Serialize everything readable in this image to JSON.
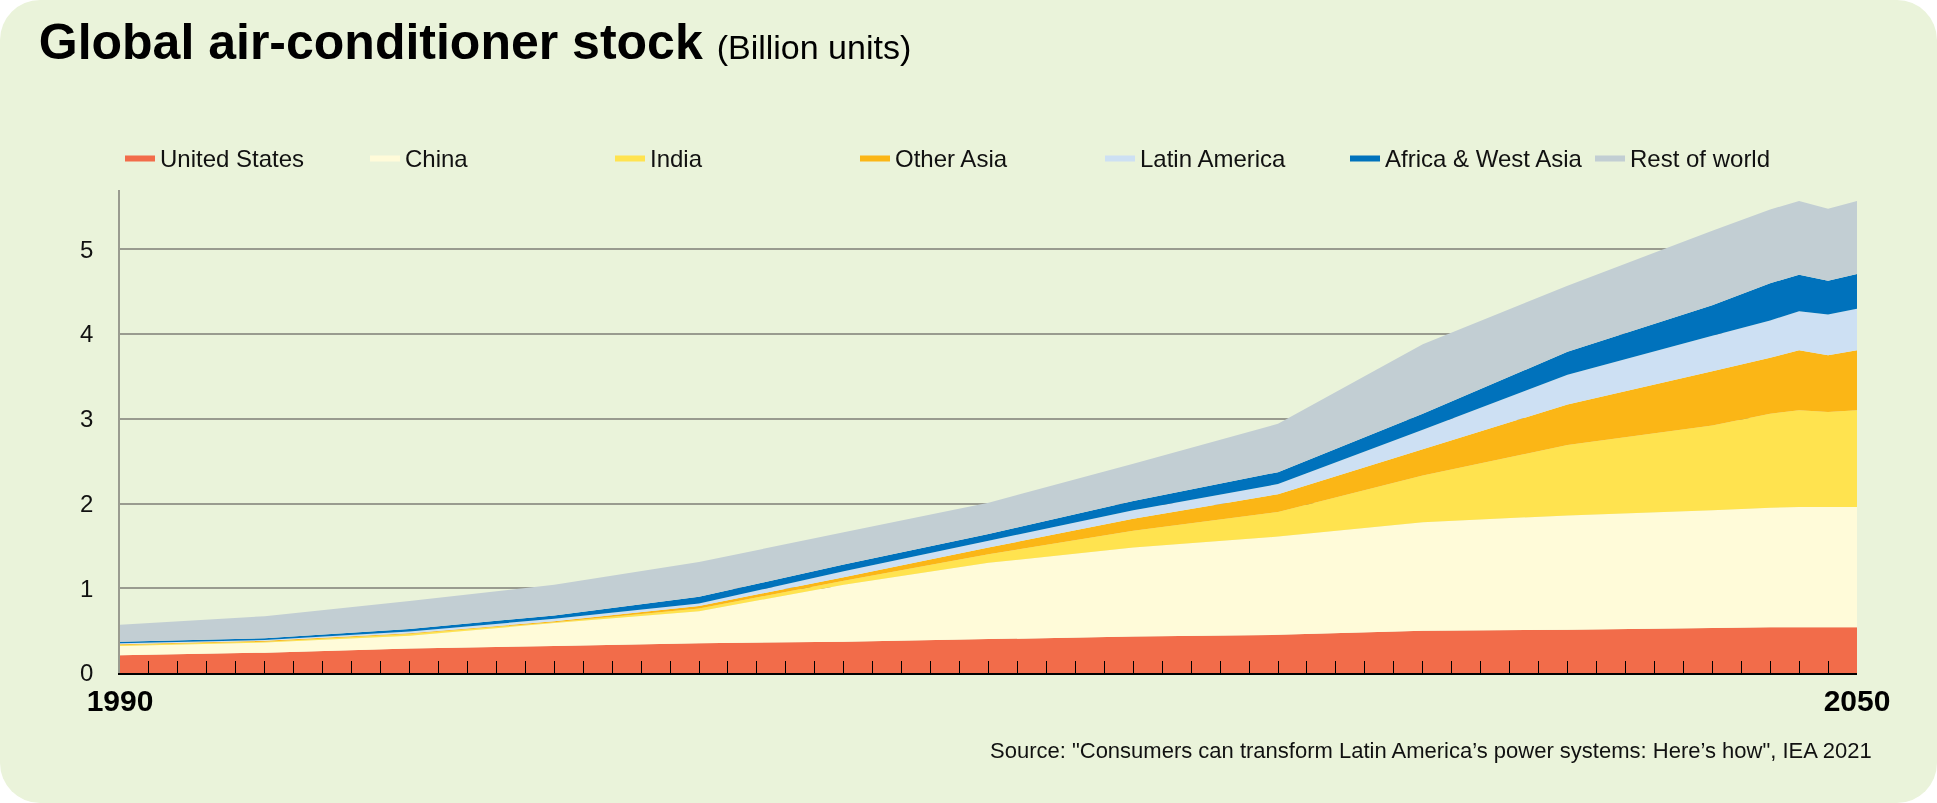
{
  "chart_data": {
    "type": "area",
    "stacked": true,
    "title": "Global air-conditioner stock",
    "subtitle": "(Billion units)",
    "x": [
      1990,
      1995,
      2000,
      2005,
      2010,
      2015,
      2020,
      2025,
      2030,
      2035,
      2040,
      2045,
      2047,
      2048,
      2049,
      2050
    ],
    "series": [
      {
        "name": "United States",
        "color": "#f26c4a",
        "values": [
          0.21,
          0.24,
          0.29,
          0.32,
          0.35,
          0.37,
          0.4,
          0.43,
          0.45,
          0.5,
          0.51,
          0.53,
          0.54,
          0.54,
          0.54,
          0.54
        ]
      },
      {
        "name": "China",
        "color": "#fffbd9",
        "values": [
          0.11,
          0.12,
          0.15,
          0.27,
          0.38,
          0.67,
          0.9,
          1.05,
          1.16,
          1.28,
          1.35,
          1.39,
          1.41,
          1.42,
          1.42,
          1.42
        ]
      },
      {
        "name": "India",
        "color": "#ffe34f",
        "values": [
          0.01,
          0.01,
          0.02,
          0.01,
          0.03,
          0.05,
          0.1,
          0.2,
          0.29,
          0.55,
          0.83,
          1.0,
          1.11,
          1.14,
          1.12,
          1.14
        ]
      },
      {
        "name": "Other Asia",
        "color": "#fbb616",
        "values": [
          0.01,
          0.01,
          0.01,
          0.01,
          0.03,
          0.04,
          0.08,
          0.14,
          0.21,
          0.31,
          0.48,
          0.64,
          0.66,
          0.71,
          0.67,
          0.71
        ]
      },
      {
        "name": "Latin America",
        "color": "#cde0f3",
        "values": [
          0.01,
          0.01,
          0.02,
          0.03,
          0.03,
          0.07,
          0.08,
          0.1,
          0.12,
          0.23,
          0.35,
          0.42,
          0.44,
          0.46,
          0.48,
          0.49
        ]
      },
      {
        "name": "Africa & West Asia",
        "color": "#0072bc",
        "values": [
          0.02,
          0.02,
          0.03,
          0.04,
          0.08,
          0.08,
          0.08,
          0.11,
          0.14,
          0.19,
          0.27,
          0.36,
          0.44,
          0.43,
          0.4,
          0.41
        ]
      },
      {
        "name": "Rest of world",
        "color": "#c2ced3",
        "values": [
          0.2,
          0.26,
          0.33,
          0.36,
          0.41,
          0.38,
          0.37,
          0.44,
          0.57,
          0.82,
          0.78,
          0.88,
          0.87,
          0.87,
          0.85,
          0.86
        ]
      }
    ],
    "xlim": [
      1990,
      2050
    ],
    "xticks": [
      1990,
      {
        "value": 1991,
        "label": null
      },
      {
        "value": 1992,
        "label": null
      },
      {
        "value": 1993,
        "label": null
      },
      {
        "value": 1994,
        "label": null
      },
      {
        "value": 1995,
        "label": null
      },
      {
        "value": 1996,
        "label": null
      },
      {
        "value": 1997,
        "label": null
      },
      {
        "value": 1998,
        "label": null
      },
      {
        "value": 1999,
        "label": null
      },
      {
        "value": 2000,
        "label": null
      },
      {
        "value": 2001,
        "label": null
      },
      {
        "value": 2002,
        "label": null
      },
      {
        "value": 2003,
        "label": null
      },
      {
        "value": 2004,
        "label": null
      },
      {
        "value": 2005,
        "label": null
      },
      {
        "value": 2006,
        "label": null
      },
      {
        "value": 2007,
        "label": null
      },
      {
        "value": 2008,
        "label": null
      },
      {
        "value": 2009,
        "label": null
      },
      {
        "value": 2010,
        "label": null
      },
      {
        "value": 2011,
        "label": null
      },
      {
        "value": 2012,
        "label": null
      },
      {
        "value": 2013,
        "label": null
      },
      {
        "value": 2014,
        "label": null
      },
      {
        "value": 2015,
        "label": null
      },
      {
        "value": 2016,
        "label": null
      },
      {
        "value": 2017,
        "label": null
      },
      {
        "value": 2018,
        "label": null
      },
      {
        "value": 2019,
        "label": null
      },
      {
        "value": 2020,
        "label": null
      },
      {
        "value": 2021,
        "label": null
      },
      {
        "value": 2022,
        "label": null
      },
      {
        "value": 2023,
        "label": null
      },
      {
        "value": 2024,
        "label": null
      },
      {
        "value": 2025,
        "label": null
      },
      {
        "value": 2026,
        "label": null
      },
      {
        "value": 2027,
        "label": null
      },
      {
        "value": 2028,
        "label": null
      },
      {
        "value": 2029,
        "label": null
      },
      {
        "value": 2030,
        "label": null
      },
      {
        "value": 2031,
        "label": null
      },
      {
        "value": 2032,
        "label": null
      },
      {
        "value": 2033,
        "label": null
      },
      {
        "value": 2034,
        "label": null
      },
      {
        "value": 2035,
        "label": null
      },
      {
        "value": 2036,
        "label": null
      },
      {
        "value": 2037,
        "label": null
      },
      {
        "value": 2038,
        "label": null
      },
      {
        "value": 2039,
        "label": null
      },
      {
        "value": 2040,
        "label": null
      },
      {
        "value": 2041,
        "label": null
      },
      {
        "value": 2042,
        "label": null
      },
      {
        "value": 2043,
        "label": null
      },
      {
        "value": 2044,
        "label": null
      },
      {
        "value": 2045,
        "label": null
      },
      {
        "value": 2046,
        "label": null
      },
      {
        "value": 2047,
        "label": null
      },
      {
        "value": 2048,
        "label": null
      },
      {
        "value": 2049,
        "label": null
      },
      2050
    ],
    "ylim": [
      0,
      5.7
    ],
    "yticks": [
      0,
      1,
      2,
      3,
      4,
      5
    ],
    "grid": "y",
    "legend": "top left",
    "annotations": [
      "Source: \"Consumers can transform Latin America’s power systems: Here’s how\", IEA 2021"
    ]
  }
}
